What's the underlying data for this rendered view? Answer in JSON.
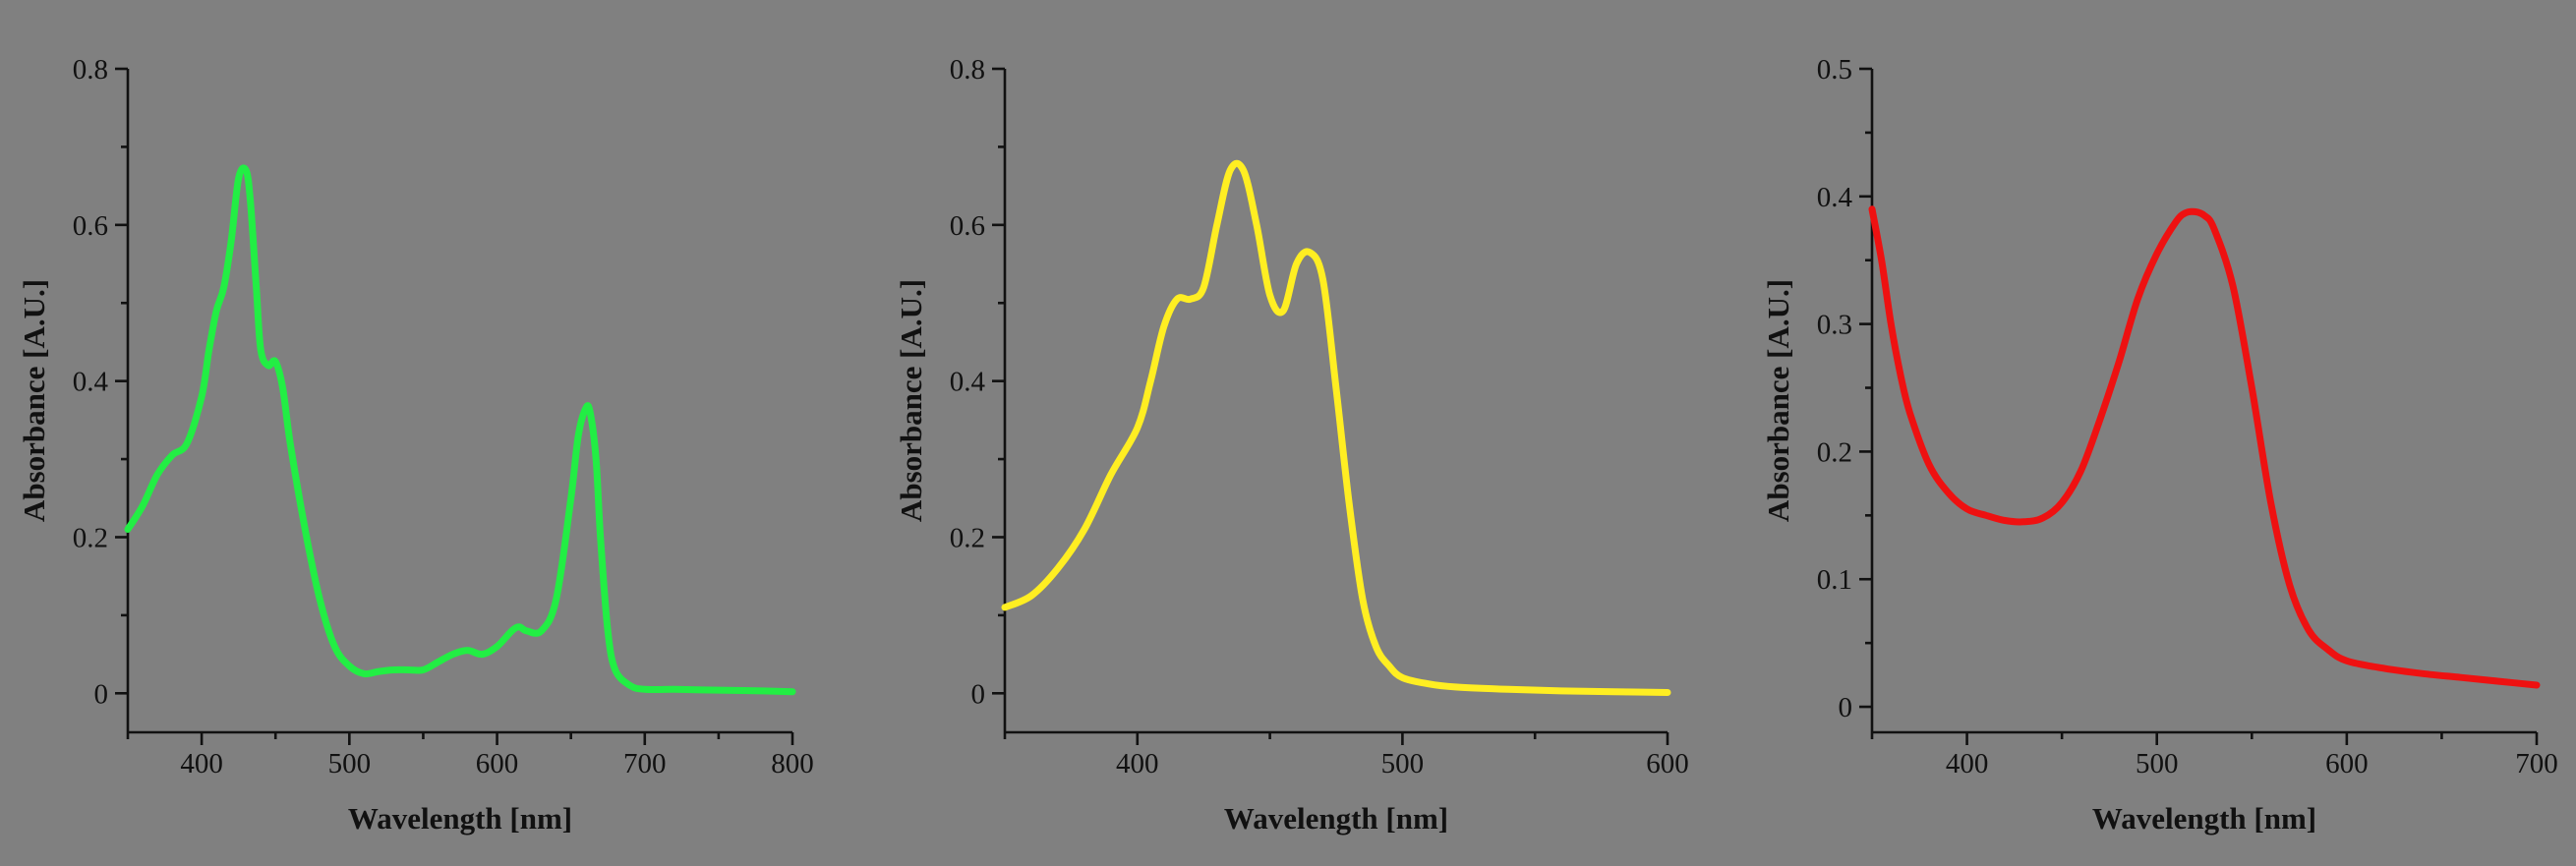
{
  "figure": {
    "background": "#808080"
  },
  "chart_data": [
    {
      "type": "line",
      "title": "",
      "xlabel": "Wavelength [nm]",
      "ylabel": "Absorbance [A.U.]",
      "xlim": [
        350,
        800
      ],
      "ylim": [
        -0.05,
        0.8
      ],
      "xticks": [
        400,
        500,
        600,
        700,
        800
      ],
      "xtick_labels": [
        "400",
        "500",
        "600",
        "700",
        "800"
      ],
      "yticks": [
        0,
        0.2,
        0.4,
        0.6,
        0.8
      ],
      "ytick_labels": [
        "0",
        "0.2",
        "0.4",
        "0.6",
        "0.8"
      ],
      "x_minor_step": 50,
      "y_minor_step": 0.1,
      "grid": false,
      "series": [
        {
          "color": "#22ee44",
          "x": [
            350,
            360,
            370,
            380,
            390,
            400,
            405,
            410,
            415,
            420,
            425,
            430,
            433,
            437,
            440,
            445,
            450,
            455,
            460,
            470,
            480,
            490,
            500,
            510,
            520,
            530,
            540,
            550,
            560,
            570,
            580,
            590,
            600,
            610,
            615,
            620,
            630,
            640,
            650,
            655,
            660,
            663,
            667,
            670,
            675,
            680,
            690,
            700,
            720,
            750,
            780,
            800
          ],
          "y": [
            0.21,
            0.24,
            0.28,
            0.305,
            0.32,
            0.38,
            0.44,
            0.49,
            0.52,
            0.58,
            0.66,
            0.67,
            0.63,
            0.52,
            0.44,
            0.42,
            0.425,
            0.39,
            0.32,
            0.21,
            0.12,
            0.06,
            0.035,
            0.025,
            0.028,
            0.03,
            0.03,
            0.03,
            0.04,
            0.05,
            0.055,
            0.05,
            0.06,
            0.08,
            0.085,
            0.08,
            0.08,
            0.12,
            0.25,
            0.33,
            0.365,
            0.36,
            0.3,
            0.2,
            0.08,
            0.03,
            0.01,
            0.005,
            0.005,
            0.004,
            0.003,
            0.002
          ]
        }
      ]
    },
    {
      "type": "line",
      "title": "",
      "xlabel": "Wavelength [nm]",
      "ylabel": "Absorbance [A.U.]",
      "xlim": [
        350,
        600
      ],
      "ylim": [
        -0.05,
        0.8
      ],
      "xticks": [
        400,
        500,
        600
      ],
      "xtick_labels": [
        "400",
        "500",
        "600"
      ],
      "yticks": [
        0,
        0.2,
        0.4,
        0.6,
        0.8
      ],
      "ytick_labels": [
        "0",
        "0.2",
        "0.4",
        "0.6",
        "0.8"
      ],
      "x_minor_step": 50,
      "y_minor_step": 0.1,
      "grid": false,
      "series": [
        {
          "color": "#ffee22",
          "x": [
            350,
            360,
            370,
            380,
            390,
            400,
            405,
            410,
            415,
            420,
            425,
            430,
            435,
            440,
            445,
            450,
            455,
            460,
            465,
            470,
            475,
            480,
            485,
            490,
            495,
            500,
            510,
            520,
            540,
            560,
            580,
            600
          ],
          "y": [
            0.11,
            0.125,
            0.16,
            0.21,
            0.28,
            0.34,
            0.4,
            0.47,
            0.505,
            0.505,
            0.52,
            0.6,
            0.67,
            0.67,
            0.6,
            0.51,
            0.49,
            0.55,
            0.565,
            0.53,
            0.39,
            0.24,
            0.12,
            0.06,
            0.035,
            0.02,
            0.012,
            0.008,
            0.005,
            0.003,
            0.002,
            0.001
          ]
        }
      ]
    },
    {
      "type": "line",
      "title": "",
      "xlabel": "Wavelength [nm]",
      "ylabel": "Absorbance [A.U.]",
      "xlim": [
        350,
        700
      ],
      "ylim": [
        -0.02,
        0.5
      ],
      "xticks": [
        400,
        500,
        600,
        700
      ],
      "xtick_labels": [
        "400",
        "500",
        "600",
        "700"
      ],
      "yticks": [
        0,
        0.1,
        0.2,
        0.3,
        0.4,
        0.5
      ],
      "ytick_labels": [
        "0",
        "0.1",
        "0.2",
        "0.3",
        "0.4",
        "0.5"
      ],
      "x_minor_step": 50,
      "y_minor_step": 0.05,
      "grid": false,
      "series": [
        {
          "color": "#ee1111",
          "x": [
            350,
            355,
            360,
            365,
            370,
            380,
            390,
            400,
            410,
            420,
            430,
            440,
            450,
            460,
            470,
            480,
            490,
            500,
            510,
            515,
            520,
            525,
            530,
            540,
            550,
            560,
            570,
            580,
            590,
            600,
            620,
            640,
            660,
            680,
            700
          ],
          "y": [
            0.39,
            0.35,
            0.3,
            0.26,
            0.23,
            0.19,
            0.168,
            0.155,
            0.15,
            0.146,
            0.145,
            0.148,
            0.16,
            0.185,
            0.225,
            0.27,
            0.32,
            0.355,
            0.38,
            0.387,
            0.388,
            0.385,
            0.375,
            0.33,
            0.25,
            0.16,
            0.095,
            0.06,
            0.045,
            0.036,
            0.03,
            0.026,
            0.023,
            0.02,
            0.017
          ]
        }
      ]
    }
  ]
}
